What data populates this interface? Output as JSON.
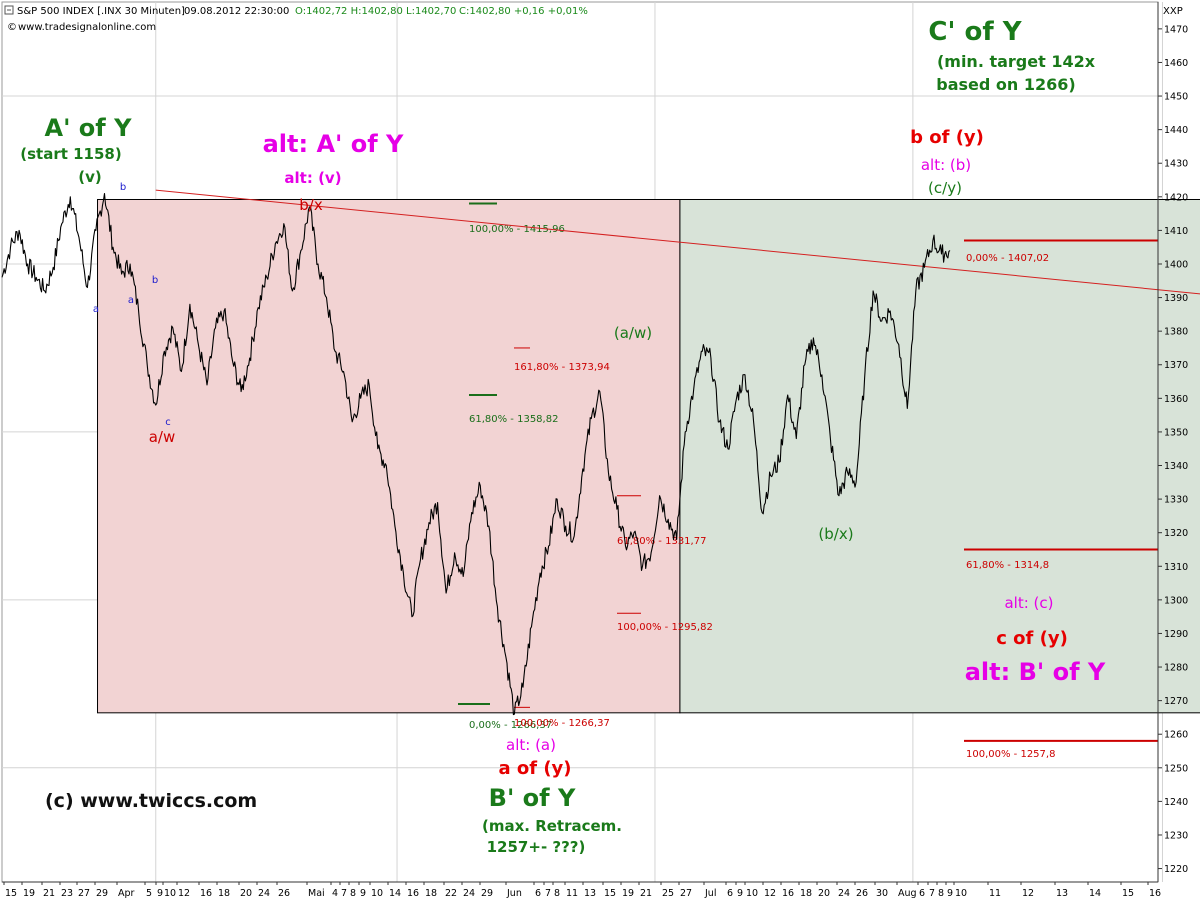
{
  "header": {
    "symbol": "S&P 500 INDEX [.INX 30 Minuten]",
    "datetime": "09.08.2012 22:30:00",
    "ohlc": "O:1402,72 H:1402,80 L:1402,70",
    "close_change": "C:1402,80 +0,16 +0,01%",
    "source": "www.tradesignalonline.com",
    "corner": "XXP"
  },
  "chart_data": {
    "type": "line",
    "title": "",
    "ylim": [
      1216,
      1478
    ],
    "y_ticks": [
      1220,
      1230,
      1240,
      1250,
      1260,
      1270,
      1280,
      1290,
      1300,
      1310,
      1320,
      1330,
      1340,
      1350,
      1360,
      1370,
      1380,
      1390,
      1400,
      1410,
      1420,
      1430,
      1440,
      1450,
      1460,
      1470
    ],
    "x_tick_labels": [
      "15",
      "19",
      "21",
      "23",
      "27",
      "29",
      "Apr",
      "5",
      "9",
      "10",
      "12",
      "16",
      "18",
      "20",
      "24",
      "26",
      "Mai",
      "4",
      "7",
      "8",
      "9",
      "10",
      "14",
      "16",
      "18",
      "22",
      "24",
      "29",
      "Jun",
      "6",
      "7",
      "8",
      "11",
      "13",
      "15",
      "19",
      "21",
      "25",
      "27",
      "Jul",
      "6",
      "9",
      "10",
      "12",
      "16",
      "18",
      "20",
      "24",
      "26",
      "30",
      "Aug",
      "6",
      "7",
      "8",
      "9",
      "10",
      "11",
      "12",
      "13",
      "14",
      "15",
      "16"
    ],
    "series": [
      {
        "values": [
          1396,
          1405,
          1410,
          1400,
          1396,
          1392,
          1399,
          1412,
          1420,
          1408,
          1393,
          1410,
          1421,
          1405,
          1397,
          1400,
          1386,
          1370,
          1358,
          1374,
          1381,
          1368,
          1388,
          1376,
          1364,
          1381,
          1386,
          1371,
          1362,
          1372,
          1387,
          1396,
          1406,
          1412,
          1392,
          1404,
          1417,
          1400,
          1390,
          1374,
          1368,
          1353,
          1360,
          1364,
          1345,
          1340,
          1322,
          1308,
          1295,
          1312,
          1323,
          1329,
          1302,
          1314,
          1307,
          1326,
          1334,
          1322,
          1298,
          1283,
          1266,
          1274,
          1292,
          1308,
          1316,
          1330,
          1322,
          1319,
          1339,
          1354,
          1362,
          1338,
          1327,
          1316,
          1320,
          1310,
          1314,
          1331,
          1324,
          1318,
          1350,
          1363,
          1374,
          1372,
          1353,
          1345,
          1360,
          1367,
          1353,
          1326,
          1337,
          1341,
          1361,
          1348,
          1370,
          1378,
          1367,
          1348,
          1331,
          1338,
          1335,
          1366,
          1392,
          1383,
          1386,
          1376,
          1357,
          1392,
          1399,
          1407,
          1403,
          1404
        ]
      }
    ],
    "boxes": [
      {
        "name": "decline-box",
        "date_from": "2012-03-26",
        "date_to": "2012-06-04",
        "price_high": 1419.2,
        "price_low": 1266.37,
        "fill": "#f2d3d3"
      },
      {
        "name": "advance-box",
        "date_from": "2012-06-04",
        "date_to": "2012-08-10",
        "price_high": 1419.2,
        "price_low": 1266.37,
        "fill": "#d8e3d8"
      }
    ],
    "trendline": {
      "from": {
        "date": "2012-04-02",
        "price": 1422
      },
      "to": {
        "date": "2012-08-10",
        "price": 1390
      }
    },
    "fib_levels": [
      {
        "label": "100,00% - 1415,96",
        "value": 1418,
        "color": "#1a6e1a"
      },
      {
        "label": "61,80% - 1358,82",
        "value": 1361,
        "color": "#1a6e1a"
      },
      {
        "label": "0,00% - 1266,37",
        "value": 1269,
        "color": "#1a6e1a"
      },
      {
        "label": "161,80% - 1373,94",
        "value": 1375,
        "color": "#cc0000"
      },
      {
        "label": "61,80% - 1331,77",
        "value": 1331,
        "color": "#cc0000"
      },
      {
        "label": "100,00% - 1295,82",
        "value": 1296,
        "color": "#cc0000"
      },
      {
        "label": "100,00% - 1266,37",
        "value": 1268,
        "color": "#cc0000"
      },
      {
        "label": "0,00% - 1407,02",
        "value": 1407,
        "color": "#cc0000"
      },
      {
        "label": "61,80% - 1314,8",
        "value": 1315,
        "color": "#cc0000"
      },
      {
        "label": "100,00% - 1257,8",
        "value": 1258,
        "color": "#cc0000"
      }
    ],
    "annotations": [
      {
        "text": "A' of Y",
        "color": "#1a7a1a",
        "weight": "bold",
        "size": 24,
        "date": "2012-03-27",
        "price": 1433
      },
      {
        "text": "(start 1158)",
        "color": "#1a7a1a",
        "weight": "bold",
        "size": 15,
        "date": "2012-03-27",
        "price": 1424
      },
      {
        "text": "(v)",
        "color": "#1a7a1a",
        "weight": "bold",
        "size": 15,
        "date": "2012-03-27",
        "price": 1416
      },
      {
        "text": "alt: A' of Y",
        "color": "#e600e6",
        "weight": "bold",
        "size": 24,
        "date": "2012-04-27",
        "price": 1429
      },
      {
        "text": "alt: (v)",
        "color": "#e600e6",
        "weight": "bold",
        "size": 15,
        "date": "2012-04-27",
        "price": 1416
      },
      {
        "text": "b/x",
        "color": "#cc0000",
        "weight": "normal",
        "size": 15,
        "date": "2012-04-27",
        "price": 1406
      },
      {
        "text": "a/w",
        "color": "#cc0000",
        "weight": "normal",
        "size": 15,
        "date": "2012-04-10",
        "price": 1336
      },
      {
        "text": "a",
        "color": "#1a1acc",
        "weight": "normal",
        "size": 10,
        "date": "2012-03-28",
        "price": 1388
      },
      {
        "text": "b",
        "color": "#1a1acc",
        "weight": "normal",
        "size": 10,
        "date": "2012-04-02",
        "price": 1421
      },
      {
        "text": "a",
        "color": "#1a1acc",
        "weight": "normal",
        "size": 10,
        "date": "2012-04-04",
        "price": 1391
      },
      {
        "text": "b",
        "color": "#1a1acc",
        "weight": "normal",
        "size": 10,
        "date": "2012-04-09",
        "price": 1396
      },
      {
        "text": "c",
        "color": "#1a1acc",
        "weight": "normal",
        "size": 10,
        "date": "2012-04-10",
        "price": 1355
      },
      {
        "text": "(a/w)",
        "color": "#1a7a1a",
        "weight": "normal",
        "size": 15,
        "date": "2012-06-25",
        "price": 1381
      },
      {
        "text": "(b/x)",
        "color": "#1a7a1a",
        "weight": "normal",
        "size": 15,
        "date": "2012-07-23",
        "price": 1318
      },
      {
        "text": "alt: (a)",
        "color": "#e600e6",
        "weight": "normal",
        "size": 15,
        "date": "2012-06-04",
        "price": 1256
      },
      {
        "text": "a of (y)",
        "color": "#e60000",
        "weight": "bold",
        "size": 18,
        "date": "2012-06-04",
        "price": 1245
      },
      {
        "text": "B' of Y",
        "color": "#1a7a1a",
        "weight": "bold",
        "size": 24,
        "date": "2012-06-05",
        "price": 1232
      },
      {
        "text": "(max. Retracem.",
        "color": "#1a7a1a",
        "weight": "bold",
        "size": 15,
        "date": "2012-06-05",
        "price": 1221
      },
      {
        "text": "1257+- ???)",
        "color": "#1a7a1a",
        "weight": "bold",
        "size": 15,
        "date": "2012-06-05",
        "price": 1214
      },
      {
        "text": "b of (y)",
        "color": "#e60000",
        "weight": "bold",
        "size": 18,
        "date": "2012-08-10",
        "price": 1433
      },
      {
        "text": "alt: (b)",
        "color": "#e600e6",
        "weight": "normal",
        "size": 15,
        "date": "2012-08-10",
        "price": 1424
      },
      {
        "text": "(c/y)",
        "color": "#1a7a1a",
        "weight": "normal",
        "size": 15,
        "date": "2012-08-10",
        "price": 1416
      },
      {
        "text": "C' of Y",
        "color": "#1a7a1a",
        "weight": "bold",
        "size": 26,
        "date": "2012-08-15",
        "price": 1469
      },
      {
        "text": "(min. target 142x",
        "color": "#1a7a1a",
        "weight": "bold",
        "size": 16,
        "date": "2012-08-15",
        "price": 1460
      },
      {
        "text": "based on 1266)",
        "color": "#1a7a1a",
        "weight": "bold",
        "size": 16,
        "date": "2012-08-15",
        "price": 1452
      },
      {
        "text": "alt: (c)",
        "color": "#e600e6",
        "weight": "normal",
        "size": 15,
        "date": "2012-08-15",
        "price": 1298
      },
      {
        "text": "c of (y)",
        "color": "#e60000",
        "weight": "bold",
        "size": 18,
        "date": "2012-08-15",
        "price": 1287
      },
      {
        "text": "alt: B' of Y",
        "color": "#e600e6",
        "weight": "bold",
        "size": 24,
        "date": "2012-08-15",
        "price": 1276
      },
      {
        "text": "(c) www.twiccs.com",
        "color": "#111111",
        "weight": "bold",
        "size": 19,
        "date": "2012-04-10",
        "price": 1240
      }
    ]
  }
}
